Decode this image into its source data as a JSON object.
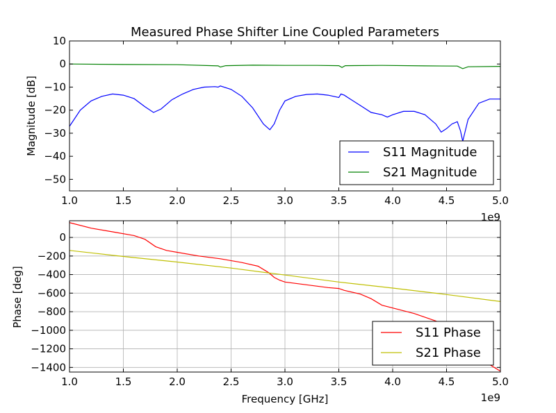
{
  "chart_data": [
    {
      "type": "line",
      "title": "Measured Phase Shifter Line Coupled Parameters",
      "xlabel": "",
      "ylabel": "Magnitude [dB]",
      "xlim": [
        1000000000,
        5000000000
      ],
      "ylim": [
        -55,
        10
      ],
      "x_ticks": [
        1.0,
        1.5,
        2.0,
        2.5,
        3.0,
        3.5,
        4.0,
        4.5,
        5.0
      ],
      "x_tick_labels": [
        "1.0",
        "1.5",
        "2.0",
        "2.5",
        "3.0",
        "3.5",
        "4.0",
        "4.5",
        "5.0"
      ],
      "x_offset_label": "1e9",
      "y_ticks": [
        10,
        0,
        -10,
        -20,
        -30,
        -40,
        -50
      ],
      "y_tick_labels": [
        "10",
        "0",
        "−10",
        "−20",
        "−30",
        "−40",
        "−50"
      ],
      "grid": false,
      "legend_position": "lower-right",
      "series": [
        {
          "name": "S11 Magnitude",
          "color": "#0000ff",
          "x": [
            1000000000.0,
            1100000000.0,
            1200000000.0,
            1300000000.0,
            1400000000.0,
            1500000000.0,
            1600000000.0,
            1700000000.0,
            1780000000.0,
            1850000000.0,
            1950000000.0,
            2050000000.0,
            2150000000.0,
            2250000000.0,
            2350000000.0,
            2380000000.0,
            2400000000.0,
            2500000000.0,
            2600000000.0,
            2700000000.0,
            2800000000.0,
            2860000000.0,
            2900000000.0,
            2950000000.0,
            3000000000.0,
            3100000000.0,
            3200000000.0,
            3300000000.0,
            3400000000.0,
            3500000000.0,
            3520000000.0,
            3550000000.0,
            3600000000.0,
            3700000000.0,
            3800000000.0,
            3900000000.0,
            3950000000.0,
            4000000000.0,
            4100000000.0,
            4200000000.0,
            4300000000.0,
            4400000000.0,
            4450000000.0,
            4500000000.0,
            4550000000.0,
            4600000000.0,
            4630000000.0,
            4650000000.0,
            4700000000.0,
            4800000000.0,
            4900000000.0,
            5000000000.0
          ],
          "values": [
            -27,
            -20,
            -16,
            -14,
            -13,
            -13.5,
            -15,
            -18.5,
            -21,
            -19.5,
            -15.5,
            -13,
            -11,
            -10,
            -9.8,
            -10,
            -9.5,
            -11,
            -14,
            -19,
            -26,
            -28.5,
            -26,
            -20,
            -16,
            -14,
            -13.2,
            -13,
            -13.5,
            -14.5,
            -13,
            -13.5,
            -15,
            -18,
            -21,
            -22,
            -23,
            -22,
            -20.5,
            -20.5,
            -22,
            -26,
            -29.5,
            -28,
            -26,
            -25,
            -29,
            -33.5,
            -24,
            -17,
            -15.2,
            -15.2
          ]
        },
        {
          "name": "S21 Magnitude",
          "color": "#008000",
          "x": [
            1000000000.0,
            1500000000.0,
            2000000000.0,
            2380000000.0,
            2400000000.0,
            2450000000.0,
            2700000000.0,
            3000000000.0,
            3300000000.0,
            3500000000.0,
            3530000000.0,
            3560000000.0,
            3900000000.0,
            4300000000.0,
            4600000000.0,
            4650000000.0,
            4700000000.0,
            5000000000.0
          ],
          "values": [
            0,
            -0.2,
            -0.3,
            -0.8,
            -1.3,
            -0.7,
            -0.5,
            -0.6,
            -0.6,
            -0.7,
            -1.5,
            -0.7,
            -0.6,
            -0.8,
            -0.9,
            -2.0,
            -1.2,
            -1.0
          ]
        }
      ]
    },
    {
      "type": "line",
      "title": "",
      "xlabel": "Frequency [GHz]",
      "ylabel": "Phase [deg]",
      "xlim": [
        1000000000,
        5000000000
      ],
      "ylim": [
        -1450,
        180
      ],
      "x_ticks": [
        1.0,
        1.5,
        2.0,
        2.5,
        3.0,
        3.5,
        4.0,
        4.5,
        5.0
      ],
      "x_tick_labels": [
        "1.0",
        "1.5",
        "2.0",
        "2.5",
        "3.0",
        "3.5",
        "4.0",
        "4.5",
        "5.0"
      ],
      "x_offset_label": "1e9",
      "y_ticks": [
        0,
        -200,
        -400,
        -600,
        -800,
        -1000,
        -1200,
        -1400
      ],
      "y_tick_labels": [
        "0",
        "−200",
        "−400",
        "−600",
        "−800",
        "−1000",
        "−1200",
        "−1400"
      ],
      "grid": true,
      "legend_position": "lower-right",
      "series": [
        {
          "name": "S11 Phase",
          "color": "#ff0000",
          "x": [
            1000000000.0,
            1200000000.0,
            1400000000.0,
            1600000000.0,
            1700000000.0,
            1800000000.0,
            1900000000.0,
            2000000000.0,
            2200000000.0,
            2400000000.0,
            2600000000.0,
            2750000000.0,
            2850000000.0,
            2900000000.0,
            2950000000.0,
            3000000000.0,
            3200000000.0,
            3400000000.0,
            3500000000.0,
            3550000000.0,
            3700000000.0,
            3800000000.0,
            3900000000.0,
            4000000000.0,
            4200000000.0,
            4400000000.0,
            4500000000.0,
            4600000000.0,
            4800000000.0,
            5000000000.0
          ],
          "values": [
            160,
            100,
            60,
            20,
            -20,
            -100,
            -140,
            -160,
            -200,
            -230,
            -270,
            -310,
            -380,
            -430,
            -460,
            -480,
            -510,
            -540,
            -550,
            -570,
            -610,
            -660,
            -730,
            -760,
            -820,
            -900,
            -950,
            -1050,
            -1300,
            -1440
          ]
        },
        {
          "name": "S21 Phase",
          "color": "#bfbf00",
          "x": [
            1000000000.0,
            1500000000.0,
            2000000000.0,
            2500000000.0,
            3000000000.0,
            3500000000.0,
            4000000000.0,
            4500000000.0,
            5000000000.0
          ],
          "values": [
            -140,
            -205,
            -265,
            -330,
            -405,
            -480,
            -545,
            -615,
            -690
          ]
        }
      ]
    }
  ]
}
